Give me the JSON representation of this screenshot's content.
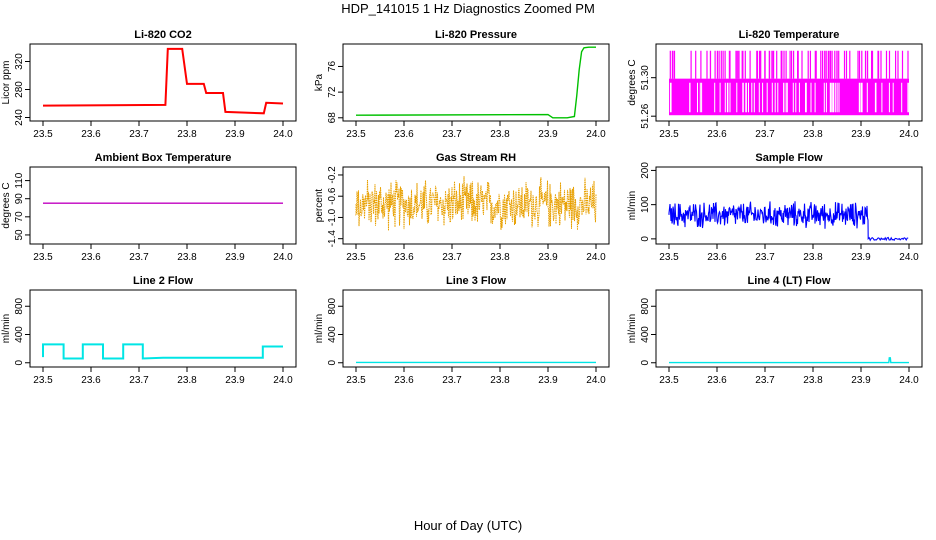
{
  "figure": {
    "title": "HDP_141015  1 Hz Diagnostics Zoomed PM",
    "xlabel": "Hour of Day (UTC)"
  },
  "chart_data": [
    {
      "type": "line",
      "title": "Li-820 CO2",
      "ylabel": "Licor ppm",
      "color": "#ff0000",
      "xlim": [
        23.5,
        24.0
      ],
      "ylim": [
        235,
        345
      ],
      "xticks": [
        "23.5",
        "23.6",
        "23.7",
        "23.8",
        "23.9",
        "24.0"
      ],
      "yticks": [
        "240",
        "280",
        "320"
      ],
      "xtick_values": [
        23.5,
        23.6,
        23.7,
        23.8,
        23.9,
        24.0
      ],
      "ytick_values": [
        240,
        280,
        320
      ],
      "series": [
        {
          "name": "CO2",
          "style": "steps",
          "x": [
            23.5,
            23.755,
            23.76,
            23.79,
            23.8,
            23.835,
            23.84,
            23.875,
            23.88,
            23.96,
            23.965,
            24.0
          ],
          "y": [
            257,
            258,
            338,
            338,
            288,
            288,
            275,
            275,
            248,
            246,
            261,
            260
          ]
        }
      ]
    },
    {
      "type": "line",
      "title": "Li-820 Pressure",
      "ylabel": "kPa",
      "color": "#00c000",
      "xlim": [
        23.5,
        24.0
      ],
      "ylim": [
        67.5,
        79.5
      ],
      "xticks": [
        "23.5",
        "23.6",
        "23.7",
        "23.8",
        "23.9",
        "24.0"
      ],
      "yticks": [
        "68",
        "72",
        "76"
      ],
      "xtick_values": [
        23.5,
        23.6,
        23.7,
        23.8,
        23.9,
        24.0
      ],
      "ytick_values": [
        68,
        72,
        76
      ],
      "series": [
        {
          "name": "Pressure",
          "style": "line",
          "x": [
            23.5,
            23.9,
            23.91,
            23.94,
            23.955,
            23.96,
            23.965,
            23.97,
            23.975,
            23.985,
            24.0
          ],
          "y": [
            68.4,
            68.5,
            68.0,
            68.0,
            68.2,
            71.5,
            75.5,
            78.3,
            78.9,
            79.0,
            79.0
          ]
        }
      ]
    },
    {
      "type": "line",
      "title": "Li-820 Temperature",
      "ylabel": "degrees C",
      "color": "#ff00ff",
      "xlim": [
        23.5,
        24.0
      ],
      "ylim": [
        51.255,
        51.335
      ],
      "xticks": [
        "23.5",
        "23.6",
        "23.7",
        "23.8",
        "23.9",
        "24.0"
      ],
      "yticks": [
        "51.26",
        "51.30"
      ],
      "xtick_values": [
        23.5,
        23.6,
        23.7,
        23.8,
        23.9,
        24.0
      ],
      "ytick_values": [
        51.26,
        51.3
      ],
      "series": [
        {
          "name": "Temperature",
          "style": "dense-band",
          "band_low": 51.261,
          "band_high": 51.299,
          "spike_high": 51.328,
          "x": [
            23.5,
            24.0
          ]
        }
      ]
    },
    {
      "type": "line",
      "title": "Ambient Box Temperature",
      "ylabel": "degrees C",
      "color": "#c000c0",
      "xlim": [
        23.5,
        24.0
      ],
      "ylim": [
        40,
        125
      ],
      "xticks": [
        "23.5",
        "23.6",
        "23.7",
        "23.8",
        "23.9",
        "24.0"
      ],
      "yticks": [
        "50",
        "70",
        "90",
        "110"
      ],
      "xtick_values": [
        23.5,
        23.6,
        23.7,
        23.8,
        23.9,
        24.0
      ],
      "ytick_values": [
        50,
        70,
        90,
        110
      ],
      "series": [
        {
          "name": "Box Temperature",
          "style": "line",
          "x": [
            23.5,
            24.0
          ],
          "y": [
            85,
            85
          ]
        }
      ]
    },
    {
      "type": "line",
      "title": "Gas Stream RH",
      "ylabel": "percent",
      "color": "#e8a000",
      "xlim": [
        23.5,
        24.0
      ],
      "ylim": [
        -1.5,
        -0.05
      ],
      "xticks": [
        "23.5",
        "23.6",
        "23.7",
        "23.8",
        "23.9",
        "24.0"
      ],
      "yticks": [
        "-1.4",
        "-1.0",
        "-0.6",
        "-0.2"
      ],
      "xtick_values": [
        23.5,
        23.6,
        23.7,
        23.8,
        23.9,
        24.0
      ],
      "ytick_values": [
        -1.4,
        -1.0,
        -0.6,
        -0.2
      ],
      "series": [
        {
          "name": "RH",
          "style": "noise",
          "center": -0.75,
          "spread": 0.55,
          "x": [
            23.5,
            24.0
          ]
        }
      ]
    },
    {
      "type": "line",
      "title": "Sample Flow",
      "ylabel": "ml/min",
      "color": "#0000ff",
      "xlim": [
        23.5,
        24.0
      ],
      "ylim": [
        -15,
        210
      ],
      "xticks": [
        "23.5",
        "23.6",
        "23.7",
        "23.8",
        "23.9",
        "24.0"
      ],
      "yticks": [
        "0",
        "100",
        "200"
      ],
      "xtick_values": [
        23.5,
        23.6,
        23.7,
        23.8,
        23.9,
        24.0
      ],
      "ytick_values": [
        0,
        100,
        200
      ],
      "series": [
        {
          "name": "Flow",
          "style": "noise-then-flat",
          "center": 70,
          "spread": 45,
          "drop_x": 23.915,
          "after_value": 0,
          "x": [
            23.5,
            24.0
          ]
        }
      ]
    },
    {
      "type": "line",
      "title": "Line 2 Flow",
      "ylabel": "ml/min",
      "color": "#00e5e5",
      "xlim": [
        23.5,
        24.0
      ],
      "ylim": [
        -60,
        1030
      ],
      "xticks": [
        "23.5",
        "23.6",
        "23.7",
        "23.8",
        "23.9",
        "24.0"
      ],
      "yticks": [
        "0",
        "400",
        "800"
      ],
      "xtick_values": [
        23.5,
        23.6,
        23.7,
        23.8,
        23.9,
        24.0
      ],
      "ytick_values": [
        0,
        400,
        800
      ],
      "series": [
        {
          "name": "Line 2",
          "style": "steps",
          "x": [
            23.5,
            23.5,
            23.543,
            23.543,
            23.583,
            23.583,
            23.625,
            23.625,
            23.667,
            23.667,
            23.708,
            23.708,
            23.75,
            23.958,
            23.958,
            24.0
          ],
          "y": [
            80,
            260,
            260,
            60,
            60,
            260,
            260,
            60,
            60,
            260,
            260,
            60,
            70,
            70,
            230,
            230
          ]
        }
      ]
    },
    {
      "type": "line",
      "title": "Line 3 Flow",
      "ylabel": "ml/min",
      "color": "#00e5e5",
      "xlim": [
        23.5,
        24.0
      ],
      "ylim": [
        -60,
        1030
      ],
      "xticks": [
        "23.5",
        "23.6",
        "23.7",
        "23.8",
        "23.9",
        "24.0"
      ],
      "yticks": [
        "0",
        "400",
        "800"
      ],
      "xtick_values": [
        23.5,
        23.6,
        23.7,
        23.8,
        23.9,
        24.0
      ],
      "ytick_values": [
        0,
        400,
        800
      ],
      "series": [
        {
          "name": "Line 3",
          "style": "line",
          "x": [
            23.5,
            24.0
          ],
          "y": [
            5,
            5
          ]
        }
      ]
    },
    {
      "type": "line",
      "title": "Line 4 (LT) Flow",
      "ylabel": "ml/min",
      "color": "#00e5e5",
      "xlim": [
        23.5,
        24.0
      ],
      "ylim": [
        -60,
        1030
      ],
      "xticks": [
        "23.5",
        "23.6",
        "23.7",
        "23.8",
        "23.9",
        "24.0"
      ],
      "yticks": [
        "0",
        "400",
        "800"
      ],
      "xtick_values": [
        23.5,
        23.6,
        23.7,
        23.8,
        23.9,
        24.0
      ],
      "ytick_values": [
        0,
        400,
        800
      ],
      "series": [
        {
          "name": "Line 4",
          "style": "line",
          "x": [
            23.5,
            23.958,
            23.959,
            23.961,
            23.962,
            24.0
          ],
          "y": [
            2,
            2,
            70,
            70,
            2,
            2
          ]
        }
      ]
    }
  ]
}
